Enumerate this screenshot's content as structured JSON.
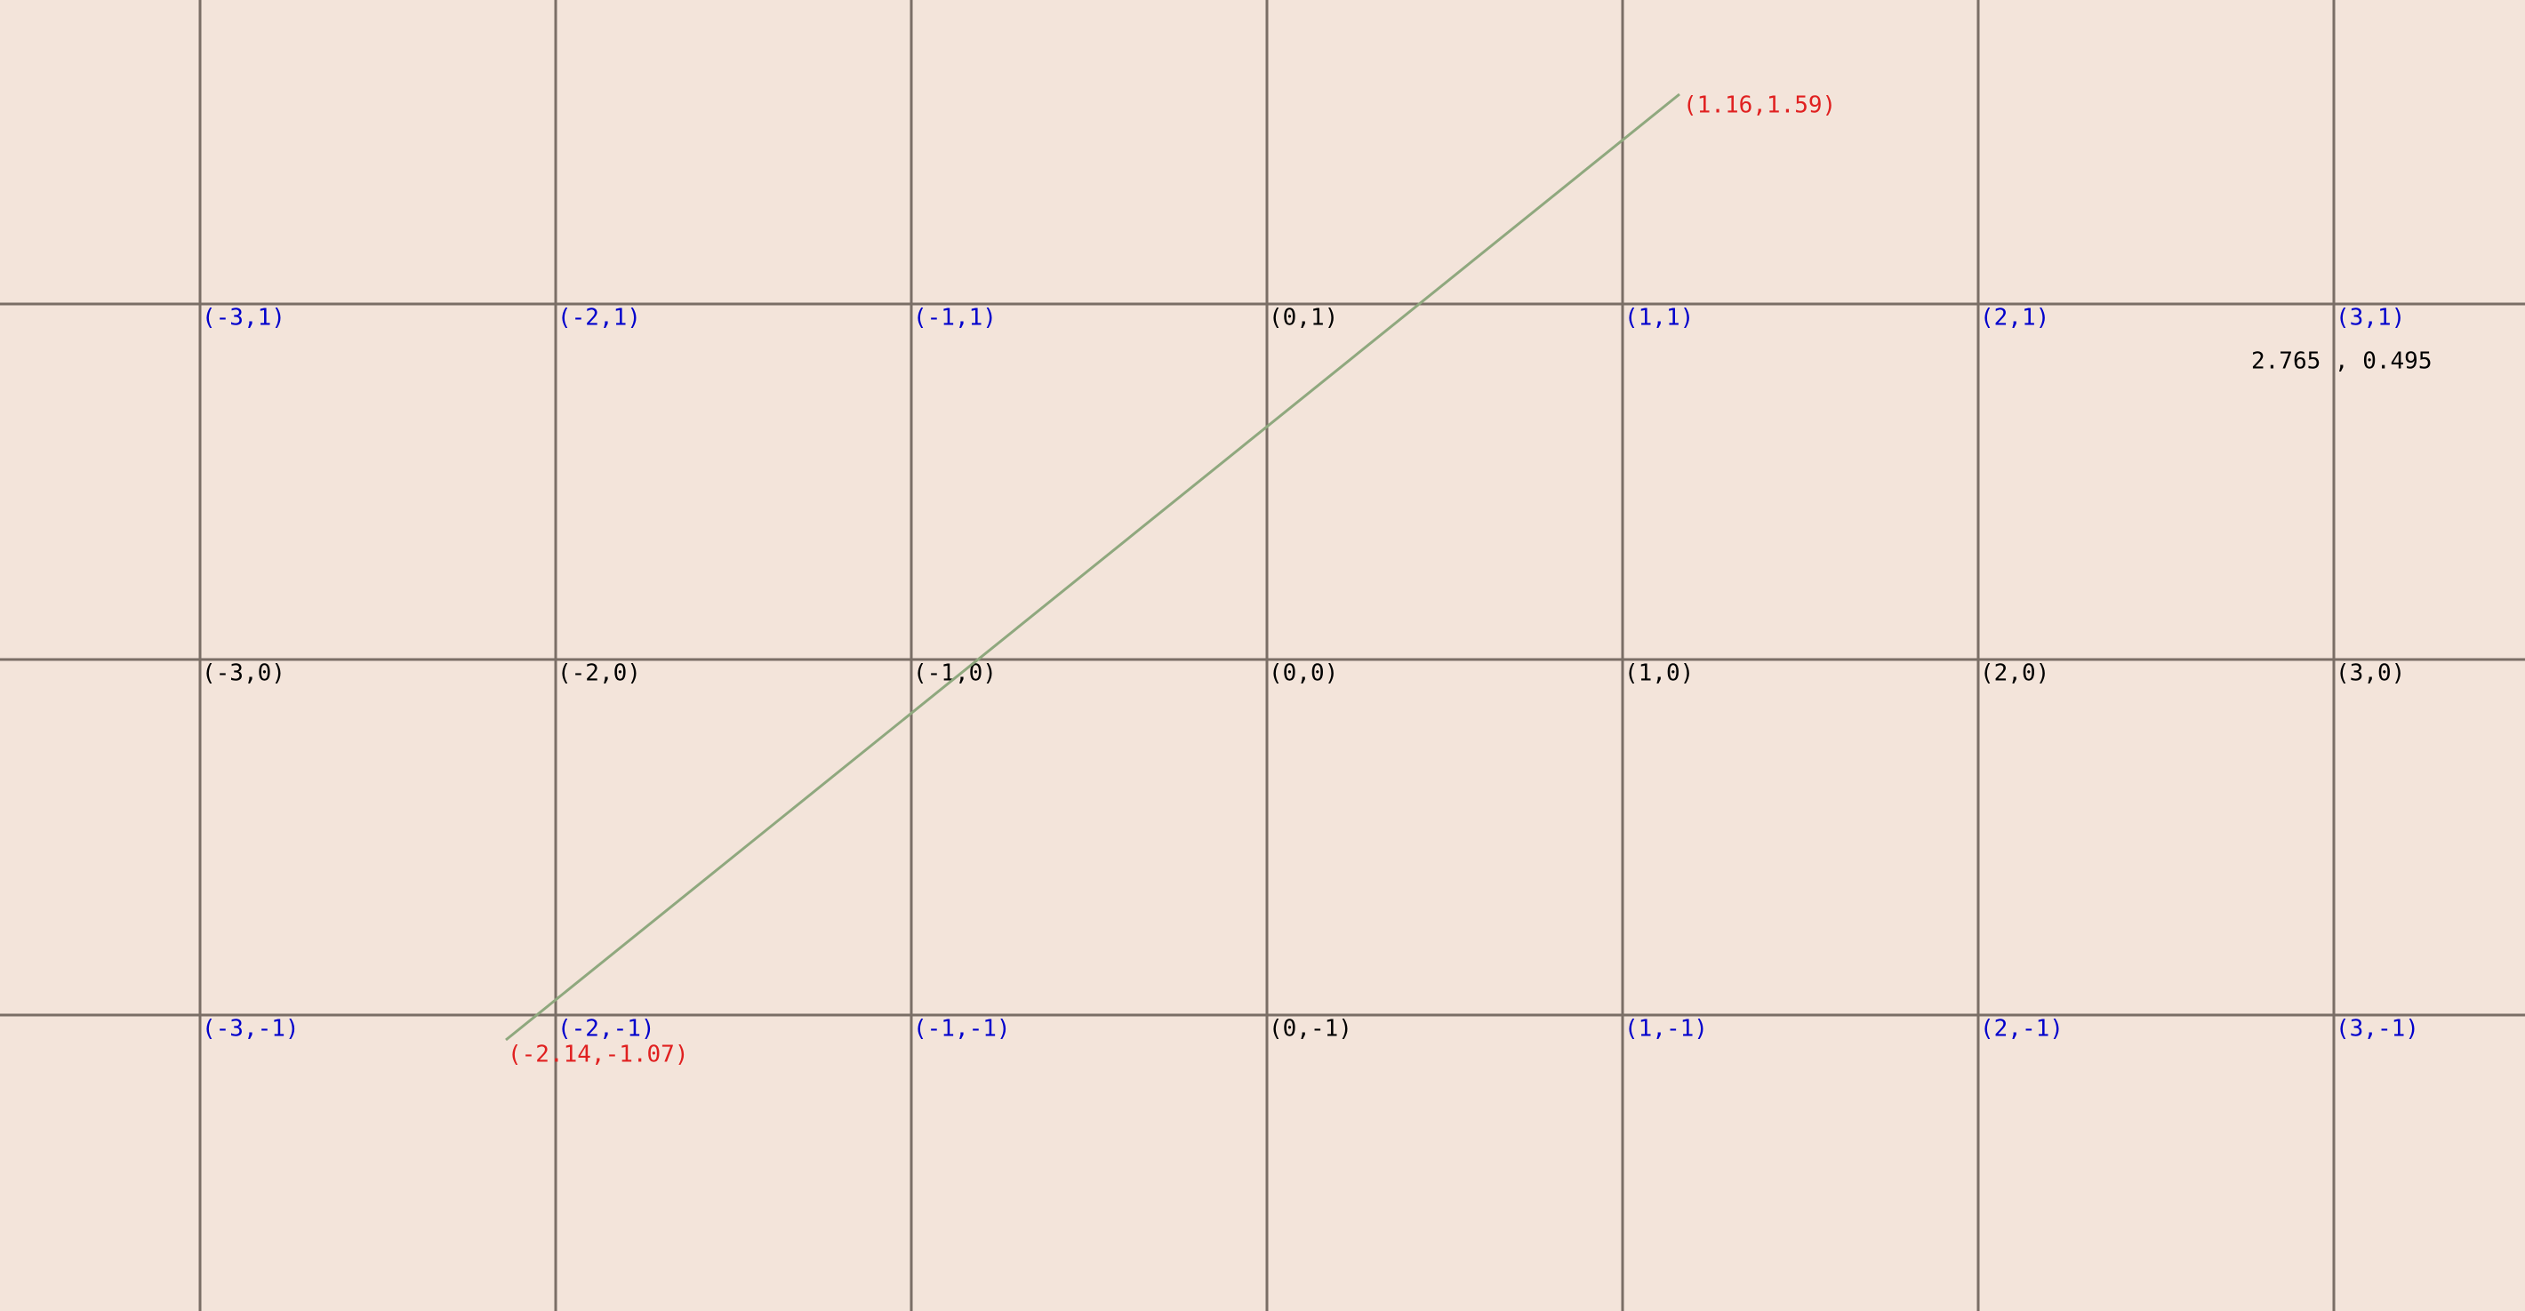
{
  "grid": {
    "labels": [
      [
        "(-3,1)",
        "(-2,1)",
        "(-1,1)",
        "(0,1)",
        "(1,1)",
        "(2,1)",
        "(3,1)"
      ],
      [
        "(-3,0)",
        "(-2,0)",
        "(-1,0)",
        "(0,0)",
        "(1,0)",
        "(2,0)",
        "(3,0)"
      ],
      [
        "(-3,-1)",
        "(-2,-1)",
        "(-1,-1)",
        "(0,-1)",
        "(1,-1)",
        "(2,-1)",
        "(3,-1)"
      ]
    ],
    "label_color": "#0000cc",
    "axis_label_color": "#000000",
    "line_color": "#7a6e66"
  },
  "segment": {
    "color": "#8fa87e",
    "label_color": "#e02020",
    "start": {
      "x": -2.14,
      "y": -1.07,
      "label": "(-2.14,-1.07)"
    },
    "end": {
      "x": 1.16,
      "y": 1.59,
      "label": "(1.16,1.59)"
    }
  },
  "cursor": "2.765 , 0.495"
}
